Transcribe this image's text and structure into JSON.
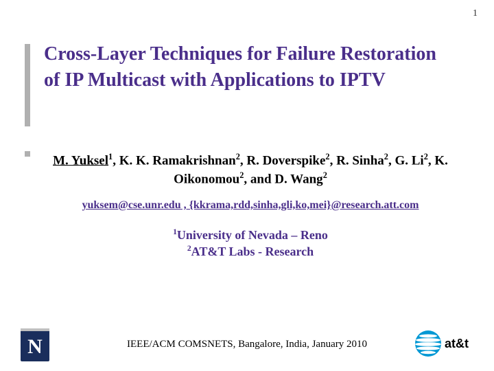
{
  "slide_number": "1",
  "title": "Cross-Layer Techniques for Failure Restoration of IP Multicast with Applications to IPTV",
  "authors_html": "<span class='underline'>M. Yuksel</span><sup>1</sup>, K. K. Ramakrishnan<sup>2</sup>, R. Doverspike<sup>2</sup>, R. Sinha<sup>2</sup>, G. Li<sup>2</sup>, K. Oikonomou<sup>2</sup>, and D. Wang<sup>2</sup>",
  "emails_html": "yuksem@cse.unr.edu</span><span>, </span><span style='text-decoration:underline'>{kkrama,rdd,sinha,gli,ko,mei}@research.att.com",
  "emails": "yuksem@cse.unr.edu , {kkrama,rdd,sinha,gli,ko,mei}@research.att.com",
  "affiliation1": "University of Nevada – Reno",
  "affiliation2": "AT&T Labs - Research",
  "venue": "IEEE/ACM COMSNETS, Bangalore, India, January 2010",
  "colors": {
    "title_color": "#4a2e8a",
    "accent_gray": "#b0b0b0",
    "nevada_blue": "#1a2e5c",
    "att_blue": "#0098d4",
    "background": "#ffffff"
  },
  "logos": {
    "left": "nevada-n-logo",
    "right": "att-globe-logo",
    "att_text": "at&t"
  }
}
